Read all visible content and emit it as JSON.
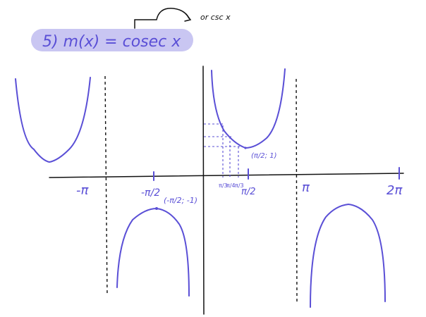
{
  "title": {
    "main": "5) m(x) = cosec x",
    "alt": "or csc x",
    "highlight_color": "#c9c6f2"
  },
  "labels": {
    "neg_pi": "-π",
    "neg_half_pi": "-π/2",
    "pi": "π",
    "half_pi": "π/2",
    "two_pi": "2π",
    "min_point": "(π/2; 1)",
    "max_point": "(-π/2; -1)",
    "tick_fractions": [
      "π/3",
      "π/4",
      "π/3"
    ]
  },
  "colors": {
    "ink": "#5a4fd6",
    "axes": "#111111"
  }
}
